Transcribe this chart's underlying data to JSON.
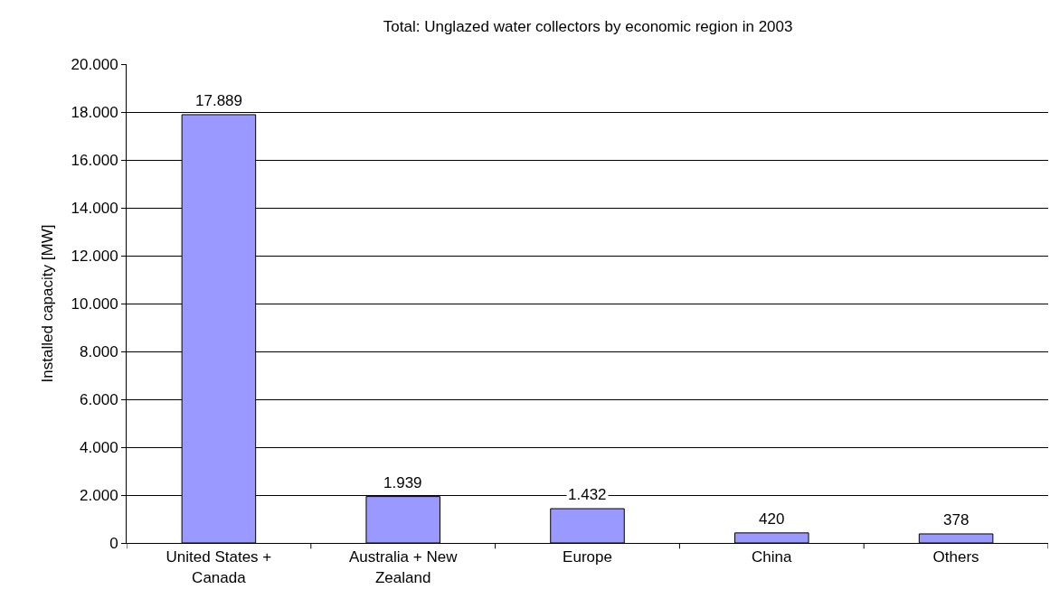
{
  "chart_data": {
    "type": "bar",
    "title": "Total: Unglazed water collectors by economic region in 2003",
    "ylabel": "Installed capacity [MW]",
    "categories": [
      "United States + Canada",
      "Australia + New Zealand",
      "Europe",
      "China",
      "Others"
    ],
    "values": [
      17889,
      1939,
      1432,
      420,
      378
    ],
    "value_labels": [
      "17.889",
      "1.939",
      "1.432",
      "420",
      "378"
    ],
    "color": "#9999ff",
    "ylim": [
      0,
      20000
    ],
    "yticks": [
      {
        "value": 0,
        "label": "0"
      },
      {
        "value": 2000,
        "label": "2.000"
      },
      {
        "value": 4000,
        "label": "4.000"
      },
      {
        "value": 6000,
        "label": "6.000"
      },
      {
        "value": 8000,
        "label": "8.000"
      },
      {
        "value": 10000,
        "label": "10.000"
      },
      {
        "value": 12000,
        "label": "12.000"
      },
      {
        "value": 14000,
        "label": "14.000"
      },
      {
        "value": 16000,
        "label": "16.000"
      },
      {
        "value": 18000,
        "label": "18.000"
      },
      {
        "value": 20000,
        "label": "20.000"
      }
    ],
    "grid": "y"
  }
}
